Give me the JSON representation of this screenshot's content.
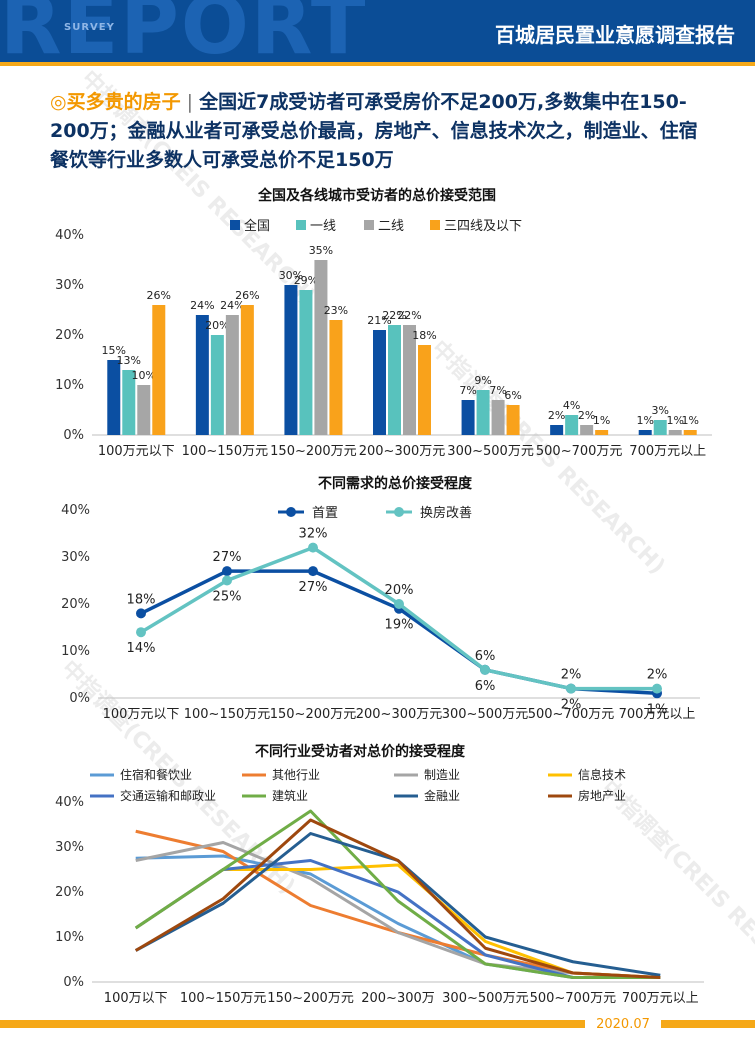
{
  "header": {
    "big_word": "REPORT",
    "small_word": "SURVEY",
    "title": "百城居民置业意愿调查报告"
  },
  "watermark": {
    "text": "中指调查(CREIS RESEARCH)"
  },
  "heading": {
    "bullet": "◎",
    "tag": "买多贵的房子",
    "separator": " | ",
    "text": "全国近7成受访者可承受房价不足200万,多数集中在150-200万；金融从业者可承受总价最高，房地产、信息技术次之，制造业、住宿餐饮等行业多数人可承受总价不足150万"
  },
  "colors": {
    "brand_blue": "#0b4d96",
    "gold": "#f5a818"
  },
  "chart_data": [
    {
      "type": "bar",
      "title": "全国及各线城市受访者的总价接受范围",
      "categories": [
        "100万元以下",
        "100~150万元",
        "150~200万元",
        "200~300万元",
        "300~500万元",
        "500~700万元",
        "700万元以上"
      ],
      "series": [
        {
          "name": "全国",
          "color": "#0b4fa2",
          "values": [
            15,
            24,
            30,
            21,
            7,
            2,
            1
          ]
        },
        {
          "name": "一线",
          "color": "#58c2bd",
          "values": [
            13,
            20,
            29,
            22,
            9,
            4,
            3
          ]
        },
        {
          "name": "二线",
          "color": "#a6a6a6",
          "values": [
            10,
            24,
            35,
            22,
            7,
            2,
            1
          ]
        },
        {
          "name": "三四线及以下",
          "color": "#f9a21b",
          "values": [
            26,
            26,
            23,
            18,
            6,
            1,
            1
          ]
        }
      ],
      "ylim": [
        0,
        40
      ],
      "yticks": [
        "0%",
        "10%",
        "20%",
        "30%",
        "40%"
      ],
      "value_suffix": "%",
      "legend": "top-center"
    },
    {
      "type": "line",
      "title": "不同需求的总价接受程度",
      "categories": [
        "100万元以下",
        "100~150万元",
        "150~200万元",
        "200~300万元",
        "300~500万元",
        "500~700万元",
        "700万元以上"
      ],
      "series": [
        {
          "name": "首置",
          "color": "#0b4fa2",
          "values": [
            18,
            27,
            27,
            19,
            6,
            2,
            1
          ]
        },
        {
          "name": "换房改善",
          "color": "#63c3c2",
          "values": [
            14,
            25,
            32,
            20,
            6,
            2,
            2
          ]
        }
      ],
      "ylim": [
        0,
        40
      ],
      "yticks": [
        "0%",
        "10%",
        "20%",
        "30%",
        "40%"
      ],
      "value_suffix": "%",
      "legend": "top-center"
    },
    {
      "type": "line",
      "title": "不同行业受访者对总价的接受程度",
      "categories": [
        "100万以下",
        "100~150万元",
        "150~200万元",
        "200~300万",
        "300~500万元",
        "500~700万元",
        "700万元以上"
      ],
      "series": [
        {
          "name": "住宿和餐饮业",
          "color": "#5b9bd5",
          "values": [
            27.5,
            28,
            24,
            13,
            4,
            1,
            1
          ]
        },
        {
          "name": "其他行业",
          "color": "#ed7d31",
          "values": [
            33.5,
            29,
            17,
            11,
            6,
            2,
            1
          ]
        },
        {
          "name": "制造业",
          "color": "#a5a5a5",
          "values": [
            27,
            31,
            23,
            11,
            4,
            2,
            1
          ]
        },
        {
          "name": "信息技术",
          "color": "#ffc000",
          "values": [
            12,
            25,
            25,
            26,
            9,
            2,
            1
          ]
        },
        {
          "name": "交通运输和邮政业",
          "color": "#4472c4",
          "values": [
            12,
            25,
            27,
            20,
            6,
            1,
            1
          ]
        },
        {
          "name": "建筑业",
          "color": "#70ad47",
          "values": [
            12,
            25,
            38,
            18,
            4,
            1,
            1
          ]
        },
        {
          "name": "金融业",
          "color": "#255e91",
          "values": [
            7,
            17.5,
            33,
            27,
            10,
            4.5,
            1.5
          ]
        },
        {
          "name": "房地产业",
          "color": "#9e480e",
          "values": [
            7,
            18.5,
            36,
            27,
            7.5,
            2,
            1
          ]
        }
      ],
      "ylim": [
        0,
        40
      ],
      "yticks": [
        "0%",
        "10%",
        "20%",
        "30%",
        "40%"
      ],
      "legend": "top"
    }
  ],
  "footer": {
    "date": "2020.07"
  }
}
